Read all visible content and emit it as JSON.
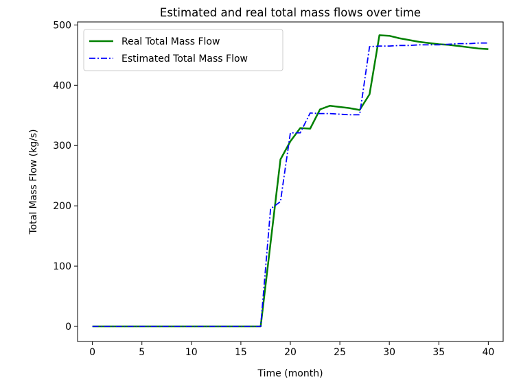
{
  "chart_data": {
    "type": "line",
    "title": "Estimated and real total mass flows over time",
    "xlabel": "Time (month)",
    "ylabel": "Total Mass Flow (kg/s)",
    "xlim": [
      -1.5,
      41.5
    ],
    "ylim": [
      -25,
      505
    ],
    "xticks": [
      0,
      5,
      10,
      15,
      20,
      25,
      30,
      35,
      40
    ],
    "yticks": [
      0,
      100,
      200,
      300,
      400,
      500
    ],
    "grid": false,
    "legend_position": "upper-left",
    "series": [
      {
        "name": "Real Total Mass Flow",
        "color": "#008000",
        "style": "solid",
        "x": [
          0,
          17,
          19,
          20,
          21,
          22,
          23,
          24,
          25,
          26,
          27,
          28,
          29,
          30,
          31,
          32,
          33,
          34,
          35,
          36,
          37,
          38,
          39,
          40
        ],
        "y": [
          0,
          0,
          277,
          307,
          329,
          328,
          360,
          366,
          364,
          362,
          359,
          385,
          483,
          482,
          478,
          475,
          472,
          470,
          468,
          467,
          465,
          463,
          461,
          460
        ]
      },
      {
        "name": "Estimated Total Mass Flow",
        "color": "#0000ff",
        "style": "dashdot",
        "x": [
          0,
          17,
          18,
          19,
          20,
          21,
          22,
          23,
          24,
          25,
          26,
          27,
          28,
          29,
          30,
          31,
          32,
          33,
          34,
          35,
          36,
          37,
          38,
          39,
          40
        ],
        "y": [
          0,
          0,
          195,
          207,
          321,
          321,
          354,
          353,
          353,
          352,
          351,
          351,
          464,
          465,
          465,
          466,
          466,
          467,
          467,
          467,
          468,
          469,
          469,
          470,
          470
        ]
      }
    ]
  }
}
